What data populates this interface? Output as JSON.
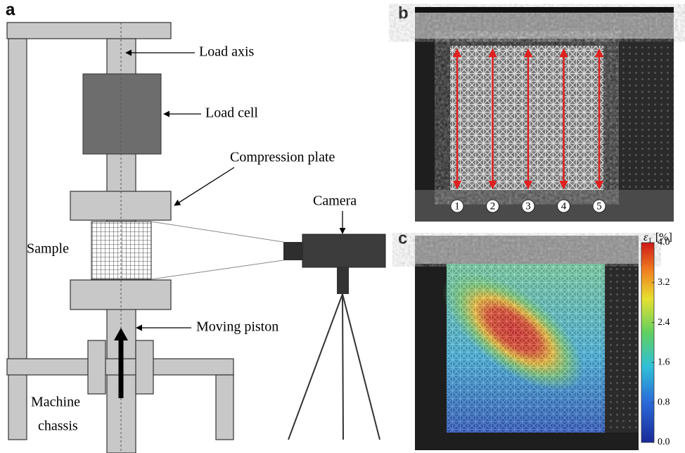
{
  "panel_labels": [
    "a",
    "b",
    "c"
  ],
  "setup": {
    "load_axis": "Load axis",
    "load_cell": "Load cell",
    "compression_plate": "Compression plate",
    "camera": "Camera",
    "sample": "Sample",
    "moving_piston": "Moving piston",
    "machine_chassis": [
      "Machine",
      "chassis"
    ]
  },
  "lines": [
    "1",
    "2",
    "3",
    "4",
    "5"
  ],
  "colorbar": {
    "symbol": "ε",
    "subscript": "1",
    "unit": "[%]",
    "ticks": [
      "4.0",
      "3.2",
      "2.4",
      "1.6",
      "0.8",
      "0.0"
    ]
  }
}
